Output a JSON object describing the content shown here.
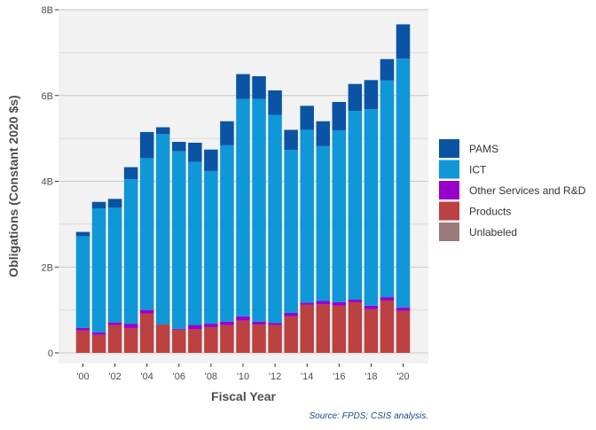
{
  "chart_data": {
    "type": "bar",
    "stacked": true,
    "xlabel": "Fiscal Year",
    "ylabel": "Obligations (Constant 2020 $s)",
    "source_note": "Source: FPDS; CSIS analysis.",
    "ylim": [
      0,
      8
    ],
    "y_ticks": [
      {
        "value": 0,
        "label": "0"
      },
      {
        "value": 2,
        "label": "2B"
      },
      {
        "value": 4,
        "label": "4B"
      },
      {
        "value": 6,
        "label": "6B"
      },
      {
        "value": 8,
        "label": "8B"
      }
    ],
    "categories": [
      2000,
      2001,
      2002,
      2003,
      2004,
      2005,
      2006,
      2007,
      2008,
      2009,
      2010,
      2011,
      2012,
      2013,
      2014,
      2015,
      2016,
      2017,
      2018,
      2019,
      2020
    ],
    "x_ticks": [
      {
        "value": 2000,
        "label": "'00"
      },
      {
        "value": 2002,
        "label": "'02"
      },
      {
        "value": 2004,
        "label": "'04"
      },
      {
        "value": 2006,
        "label": "'06"
      },
      {
        "value": 2008,
        "label": "'08"
      },
      {
        "value": 2010,
        "label": "'10"
      },
      {
        "value": 2012,
        "label": "'12"
      },
      {
        "value": 2014,
        "label": "'14"
      },
      {
        "value": 2016,
        "label": "'16"
      },
      {
        "value": 2018,
        "label": "'18"
      },
      {
        "value": 2020,
        "label": "'20"
      }
    ],
    "series": [
      {
        "name": "Unlabeled",
        "color": "#9A7A7A",
        "values": [
          0,
          0,
          0,
          0,
          0,
          0,
          0,
          0,
          0,
          0,
          0,
          0,
          0,
          0,
          0,
          0,
          0,
          0,
          0,
          0,
          0
        ]
      },
      {
        "name": "Products",
        "color": "#BC4142",
        "values": [
          0.52,
          0.42,
          0.65,
          0.58,
          0.92,
          0.66,
          0.54,
          0.55,
          0.6,
          0.65,
          0.75,
          0.66,
          0.65,
          0.85,
          1.12,
          1.13,
          1.1,
          1.18,
          1.02,
          1.22,
          0.98
        ]
      },
      {
        "name": "Other Services and R&D",
        "color": "#9900CC",
        "values": [
          0.06,
          0.06,
          0.06,
          0.1,
          0.08,
          0.0,
          0.02,
          0.1,
          0.08,
          0.08,
          0.1,
          0.07,
          0.05,
          0.08,
          0.05,
          0.08,
          0.08,
          0.06,
          0.08,
          0.08,
          0.08
        ]
      },
      {
        "name": "ICT",
        "color": "#0F97D8",
        "values": [
          2.14,
          2.89,
          2.68,
          3.37,
          3.54,
          4.44,
          4.14,
          3.8,
          3.56,
          4.11,
          5.07,
          5.19,
          4.85,
          3.8,
          4.03,
          3.61,
          4.01,
          4.4,
          4.58,
          5.05,
          5.8
        ]
      },
      {
        "name": "PAMS",
        "color": "#0A54A3",
        "values": [
          0.1,
          0.15,
          0.2,
          0.28,
          0.61,
          0.16,
          0.22,
          0.45,
          0.5,
          0.56,
          0.58,
          0.53,
          0.57,
          0.47,
          0.56,
          0.58,
          0.66,
          0.63,
          0.68,
          0.5,
          0.8
        ]
      }
    ],
    "legend": {
      "position": "right",
      "order": [
        "PAMS",
        "ICT",
        "Other Services and R&D",
        "Products",
        "Unlabeled"
      ]
    },
    "grid": true,
    "panel_background": "#F2F2F2",
    "gridline_color": "#C8C8C8"
  }
}
